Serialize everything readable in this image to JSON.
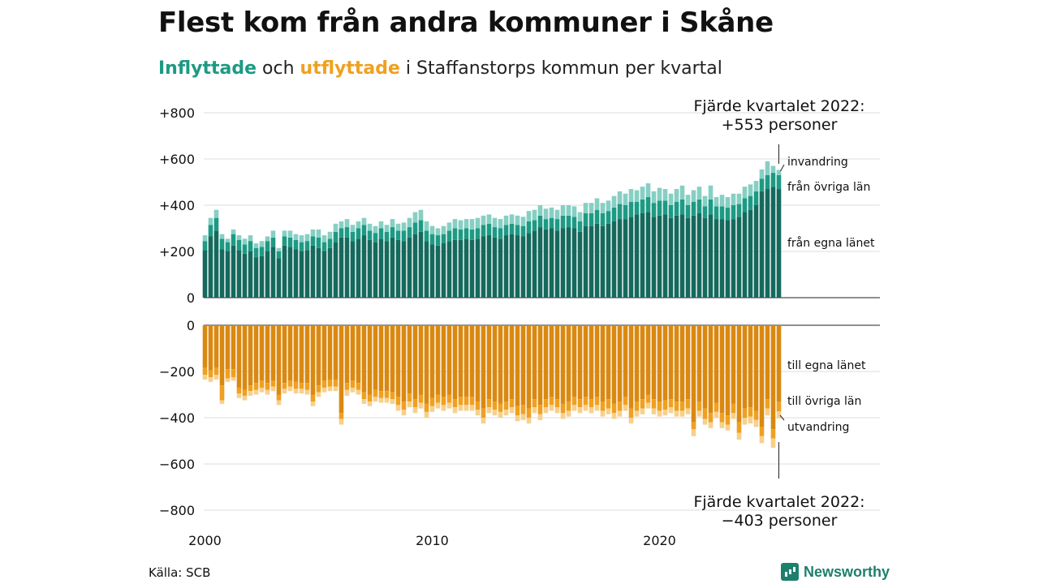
{
  "title": "Flest kom från andra kommuner i Skåne",
  "subtitle": {
    "in_word": "Inflyttade",
    "connector": " och ",
    "out_word": "utflyttade",
    "rest": " i Staffanstorps kommun per kvartal"
  },
  "source": "Källa: SCB",
  "logo_text": "Newsworthy",
  "colors": {
    "in_egna": "#15695d",
    "in_ovriga": "#1d9a84",
    "in_invandring": "#86cfc3",
    "out_egna": "#d98912",
    "out_ovriga": "#f0a020",
    "out_utvandring": "#f7d08c",
    "grid": "#dddddd"
  },
  "chart_data": {
    "type": "bar",
    "stacked": true,
    "x_start": "2000-Q1",
    "x_end": "2022-Q4",
    "x_ticks": [
      "2000",
      "2010",
      "2020"
    ],
    "top_panel": {
      "ylim": [
        0,
        800
      ],
      "yticks": [
        "+800",
        "+600",
        "+400",
        "+200",
        "0"
      ],
      "series": [
        {
          "name": "från egna länet",
          "values": [
            205,
            265,
            290,
            210,
            200,
            225,
            205,
            190,
            200,
            175,
            180,
            200,
            220,
            170,
            225,
            220,
            210,
            200,
            205,
            225,
            215,
            200,
            215,
            240,
            260,
            260,
            245,
            255,
            270,
            250,
            240,
            255,
            245,
            260,
            250,
            245,
            260,
            275,
            285,
            245,
            230,
            225,
            235,
            245,
            250,
            250,
            255,
            250,
            255,
            265,
            270,
            260,
            255,
            270,
            275,
            270,
            265,
            280,
            290,
            305,
            295,
            300,
            290,
            300,
            305,
            300,
            285,
            310,
            310,
            320,
            310,
            320,
            330,
            340,
            340,
            350,
            360,
            365,
            370,
            350,
            355,
            360,
            345,
            355,
            360,
            345,
            355,
            365,
            345,
            360,
            340,
            340,
            335,
            340,
            350,
            370,
            380,
            400,
            460,
            470,
            480,
            470
          ]
        },
        {
          "name": "från övriga län",
          "values": [
            40,
            50,
            55,
            45,
            40,
            50,
            45,
            40,
            45,
            40,
            40,
            45,
            40,
            30,
            40,
            40,
            40,
            40,
            40,
            40,
            45,
            40,
            40,
            45,
            40,
            45,
            40,
            45,
            45,
            40,
            40,
            45,
            40,
            45,
            40,
            45,
            45,
            50,
            50,
            45,
            45,
            45,
            40,
            45,
            50,
            45,
            45,
            45,
            45,
            50,
            50,
            45,
            45,
            45,
            45,
            45,
            45,
            50,
            45,
            50,
            45,
            45,
            50,
            55,
            50,
            50,
            45,
            55,
            55,
            60,
            55,
            55,
            60,
            65,
            60,
            65,
            55,
            60,
            65,
            60,
            65,
            60,
            55,
            60,
            65,
            55,
            60,
            60,
            50,
            65,
            55,
            55,
            55,
            60,
            55,
            60,
            60,
            60,
            55,
            60,
            60,
            60
          ]
        },
        {
          "name": "invandring",
          "values": [
            25,
            30,
            35,
            20,
            15,
            20,
            20,
            25,
            25,
            20,
            25,
            20,
            30,
            15,
            25,
            30,
            25,
            30,
            30,
            30,
            35,
            30,
            30,
            35,
            30,
            35,
            30,
            30,
            30,
            30,
            30,
            30,
            30,
            35,
            30,
            35,
            40,
            45,
            45,
            40,
            35,
            30,
            35,
            35,
            40,
            40,
            40,
            45,
            45,
            40,
            40,
            40,
            40,
            40,
            40,
            40,
            40,
            45,
            45,
            45,
            45,
            45,
            40,
            45,
            45,
            45,
            40,
            45,
            45,
            50,
            45,
            45,
            50,
            55,
            50,
            55,
            50,
            55,
            60,
            50,
            55,
            50,
            50,
            55,
            60,
            45,
            50,
            55,
            45,
            60,
            40,
            50,
            45,
            50,
            45,
            50,
            50,
            45,
            40,
            60,
            30,
            23
          ]
        }
      ],
      "annotation": {
        "line1": "Fjärde kvartalet 2022:",
        "line2": "+553 personer"
      },
      "labels": [
        "invandring",
        "från övriga län",
        "från egna länet"
      ]
    },
    "bottom_panel": {
      "ylim": [
        -800,
        0
      ],
      "yticks": [
        "0",
        "−200",
        "−400",
        "−600",
        "−800"
      ],
      "series": [
        {
          "name": "till egna länet",
          "values": [
            -185,
            -195,
            -185,
            -260,
            -190,
            -190,
            -270,
            -280,
            -260,
            -250,
            -240,
            -250,
            -240,
            -300,
            -250,
            -240,
            -245,
            -250,
            -250,
            -300,
            -260,
            -240,
            -235,
            -235,
            -380,
            -250,
            -240,
            -250,
            -290,
            -300,
            -280,
            -285,
            -285,
            -290,
            -310,
            -330,
            -295,
            -320,
            -300,
            -340,
            -315,
            -300,
            -310,
            -300,
            -320,
            -310,
            -310,
            -310,
            -330,
            -360,
            -320,
            -330,
            -340,
            -330,
            -320,
            -350,
            -345,
            -360,
            -320,
            -345,
            -320,
            -310,
            -320,
            -340,
            -330,
            -310,
            -320,
            -310,
            -320,
            -310,
            -330,
            -320,
            -340,
            -330,
            -310,
            -360,
            -330,
            -320,
            -300,
            -320,
            -330,
            -325,
            -320,
            -330,
            -330,
            -320,
            -420,
            -330,
            -360,
            -380,
            -335,
            -380,
            -390,
            -340,
            -420,
            -360,
            -355,
            -370,
            -440,
            -320,
            -450,
            -330
          ]
        },
        {
          "name": "till övriga län",
          "values": [
            -30,
            -30,
            -30,
            -65,
            -40,
            -35,
            -25,
            -25,
            -25,
            -30,
            -30,
            -30,
            -25,
            -25,
            -25,
            -25,
            -30,
            -25,
            -30,
            -30,
            -30,
            -30,
            -30,
            -30,
            -25,
            -30,
            -30,
            -30,
            -30,
            -30,
            -30,
            -30,
            -30,
            -30,
            -35,
            -35,
            -35,
            -35,
            -35,
            -35,
            -35,
            -35,
            -35,
            -35,
            -35,
            -35,
            -35,
            -35,
            -35,
            -40,
            -35,
            -35,
            -35,
            -35,
            -35,
            -40,
            -40,
            -40,
            -35,
            -40,
            -35,
            -35,
            -35,
            -40,
            -40,
            -35,
            -35,
            -35,
            -35,
            -35,
            -40,
            -40,
            -40,
            -40,
            -35,
            -40,
            -40,
            -40,
            -35,
            -40,
            -40,
            -40,
            -35,
            -40,
            -40,
            -40,
            -30,
            -40,
            -45,
            -40,
            -40,
            -40,
            -40,
            -40,
            -45,
            -40,
            -40,
            -40,
            -40,
            -40,
            -40,
            -43
          ]
        },
        {
          "name": "utvandring",
          "values": [
            -20,
            -20,
            -20,
            -15,
            -15,
            -15,
            -20,
            -20,
            -20,
            -20,
            -20,
            -20,
            -20,
            -20,
            -20,
            -20,
            -20,
            -20,
            -20,
            -20,
            -20,
            -20,
            -20,
            -20,
            -25,
            -25,
            -20,
            -20,
            -20,
            -20,
            -20,
            -20,
            -20,
            -20,
            -25,
            -25,
            -25,
            -25,
            -25,
            -25,
            -25,
            -25,
            -25,
            -25,
            -25,
            -25,
            -25,
            -25,
            -25,
            -25,
            -25,
            -25,
            -25,
            -25,
            -25,
            -25,
            -25,
            -25,
            -25,
            -25,
            -25,
            -25,
            -25,
            -25,
            -25,
            -25,
            -25,
            -25,
            -25,
            -25,
            -25,
            -25,
            -25,
            -25,
            -25,
            -25,
            -25,
            -25,
            -25,
            -25,
            -25,
            -25,
            -25,
            -25,
            -25,
            -25,
            -30,
            -25,
            -25,
            -25,
            -25,
            -25,
            -25,
            -25,
            -30,
            -30,
            -30,
            -30,
            -30,
            -30,
            -40,
            -30
          ]
        }
      ],
      "annotation": {
        "line1": "Fjärde kvartalet 2022:",
        "line2": "−403 personer"
      },
      "labels": [
        "till egna länet",
        "till övriga län",
        "utvandring"
      ]
    }
  }
}
